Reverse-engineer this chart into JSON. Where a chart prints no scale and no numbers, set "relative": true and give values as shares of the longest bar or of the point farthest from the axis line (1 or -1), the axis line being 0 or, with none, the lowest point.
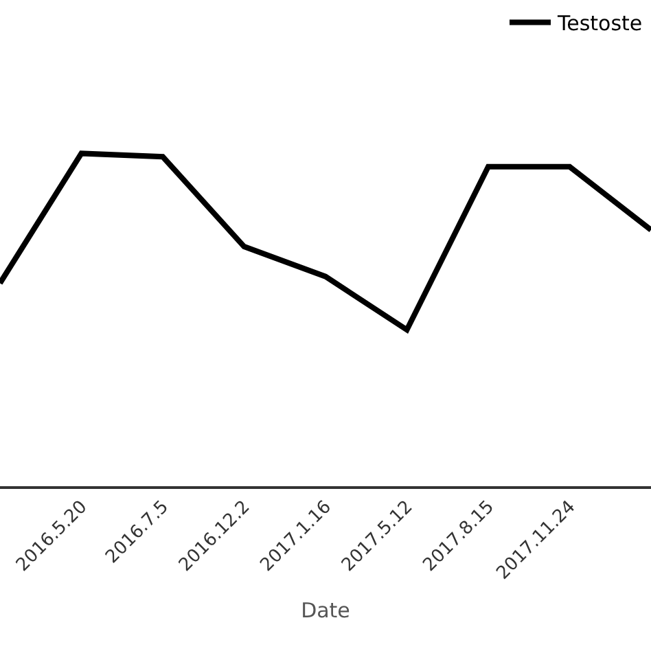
{
  "chart_data": {
    "type": "line",
    "relative": true,
    "xlabel": "Date",
    "categories": [
      null,
      "2016.5.20",
      "2016.7.5",
      "2016.12.2",
      "2017.1.16",
      "2017.5.12",
      "2017.8.15",
      "2017.11.24",
      null
    ],
    "series": [
      {
        "name": "Testoste",
        "color": "#000000",
        "values": [
          0.61,
          1,
          0.99,
          0.72,
          0.63,
          0.47,
          0.96,
          0.96,
          0.77
        ]
      }
    ],
    "legend": "top right",
    "marker": "none",
    "line_style": "solid"
  }
}
